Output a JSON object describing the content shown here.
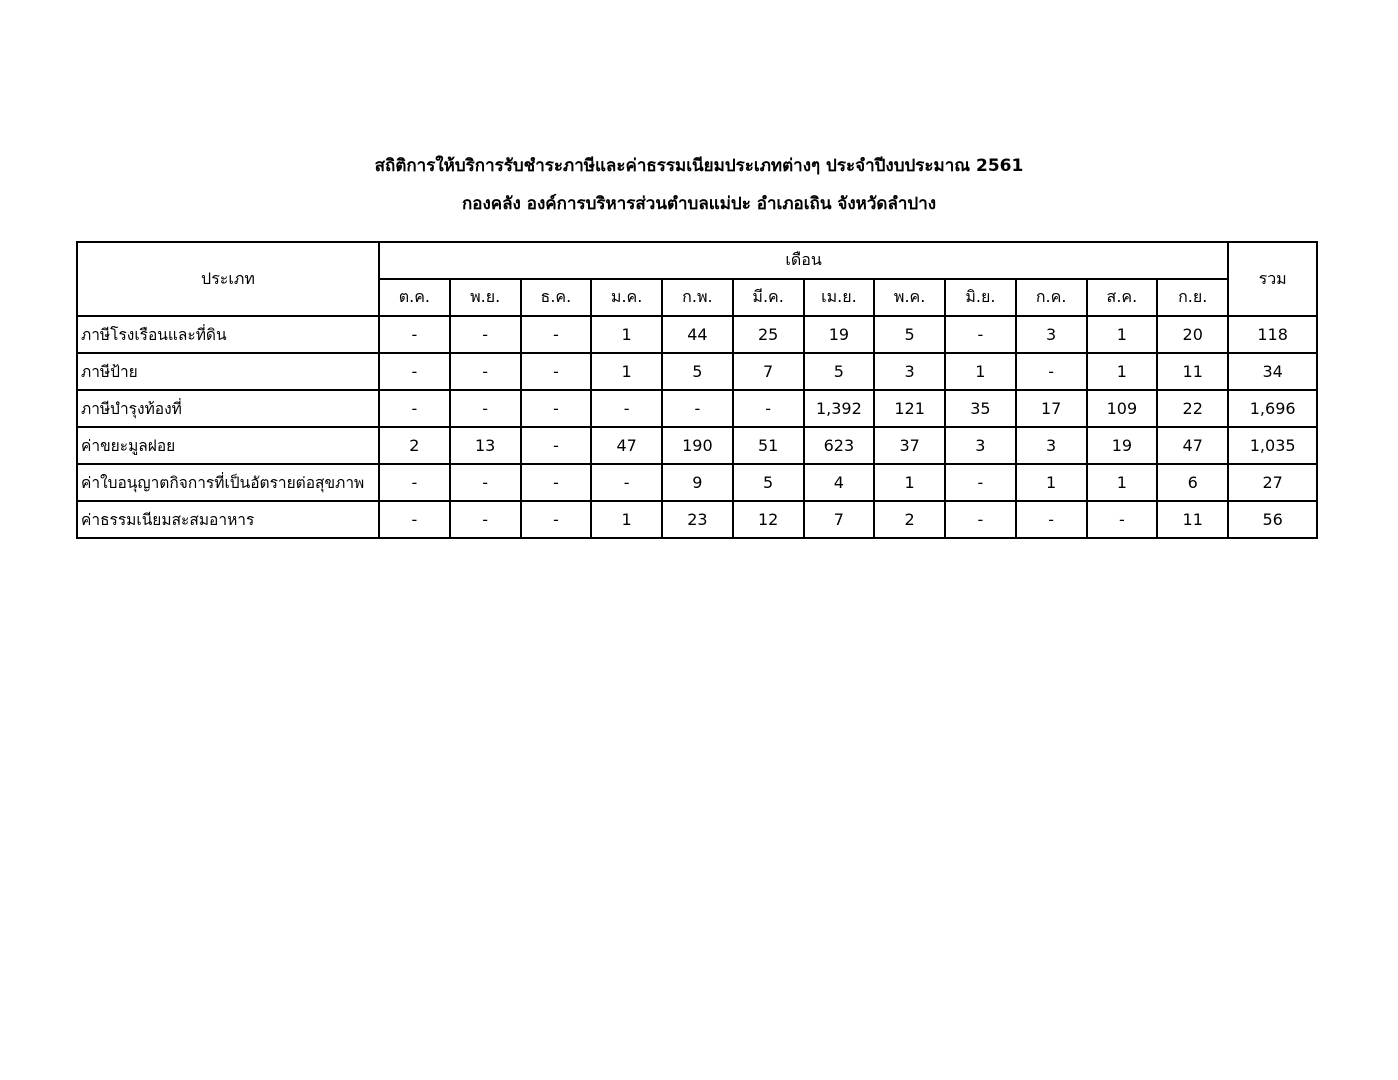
{
  "title": "สถิติการให้บริการรับชำระภาษีและค่าธรรมเนียมประเภทต่างๆ ประจำปีงบประมาณ 2561",
  "subtitle": "กองคลัง องค์การบริหารส่วนตำบลแม่ปะ อำเภอเถิน จังหวัดลำปาง",
  "table": {
    "header_type": "ประเภท",
    "header_month": "เดือน",
    "header_total": "รวม",
    "months": [
      "ต.ค.",
      "พ.ย.",
      "ธ.ค.",
      "ม.ค.",
      "ก.พ.",
      "มี.ค.",
      "เม.ย.",
      "พ.ค.",
      "มิ.ย.",
      "ก.ค.",
      "ส.ค.",
      "ก.ย."
    ],
    "rows": [
      {
        "label": "ภาษีโรงเรือนและที่ดิน",
        "values": [
          "-",
          "-",
          "-",
          "1",
          "44",
          "25",
          "19",
          "5",
          "-",
          "3",
          "1",
          "20"
        ],
        "total": "118"
      },
      {
        "label": "ภาษีป้าย",
        "values": [
          "-",
          "-",
          "-",
          "1",
          "5",
          "7",
          "5",
          "3",
          "1",
          "-",
          "1",
          "11"
        ],
        "total": "34"
      },
      {
        "label": "ภาษีบำรุงท้องที่",
        "values": [
          "-",
          "-",
          "-",
          "-",
          "-",
          "-",
          "1,392",
          "121",
          "35",
          "17",
          "109",
          "22"
        ],
        "total": "1,696"
      },
      {
        "label": "ค่าขยะมูลฝอย",
        "values": [
          "2",
          "13",
          "-",
          "47",
          "190",
          "51",
          "623",
          "37",
          "3",
          "3",
          "19",
          "47"
        ],
        "total": "1,035"
      },
      {
        "label": "ค่าใบอนุญาตกิจการที่เป็นอัตรายต่อสุขภาพ",
        "values": [
          "-",
          "-",
          "-",
          "-",
          "9",
          "5",
          "4",
          "1",
          "-",
          "1",
          "1",
          "6"
        ],
        "total": "27"
      },
      {
        "label": "ค่าธรรมเนียมสะสมอาหาร",
        "values": [
          "-",
          "-",
          "-",
          "1",
          "23",
          "12",
          "7",
          "2",
          "-",
          "-",
          "-",
          "11"
        ],
        "total": "56"
      }
    ]
  }
}
